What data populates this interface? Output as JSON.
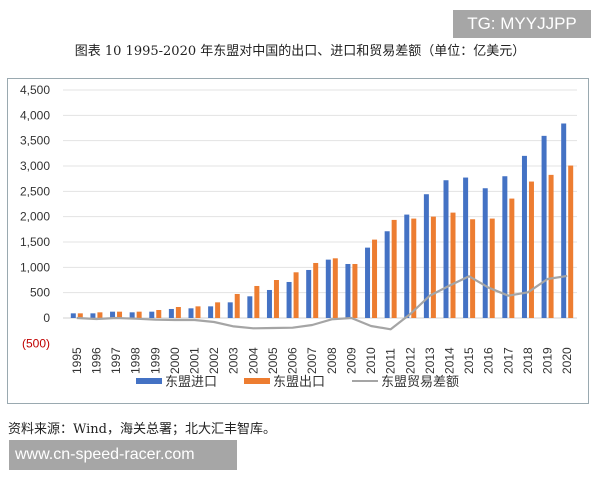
{
  "watermark_top": "TG: MYYJJPP",
  "watermark_bottom": "www.cn-speed-racer.com",
  "source": "资料来源：Wind，海关总署；北大汇丰智库。",
  "chart_data": {
    "type": "bar",
    "title": "图表 10 1995-2020 年东盟对中国的出口、进口和贸易差额（单位：亿美元）",
    "categories": [
      "1995",
      "1996",
      "1997",
      "1998",
      "1999",
      "2000",
      "2001",
      "2002",
      "2003",
      "2004",
      "2005",
      "2006",
      "2007",
      "2008",
      "2009",
      "2010",
      "2011",
      "2012",
      "2013",
      "2014",
      "2015",
      "2016",
      "2017",
      "2018",
      "2019",
      "2020"
    ],
    "ylim": [
      -500,
      4500
    ],
    "yticks": [
      -500,
      0,
      500,
      1000,
      1500,
      2000,
      2500,
      3000,
      3500,
      4000,
      4500
    ],
    "ytick_labels": [
      "(500)",
      "0",
      "500",
      "1,000",
      "1,500",
      "2,000",
      "2,500",
      "3,000",
      "3,500",
      "4,000",
      "4,500"
    ],
    "grid": true,
    "legend_position": "bottom",
    "series": [
      {
        "name": "东盟进口",
        "type": "bar",
        "color": "#4472c4",
        "values": [
          92,
          92,
          125,
          112,
          125,
          178,
          191,
          230,
          309,
          428,
          553,
          711,
          948,
          1152,
          1066,
          1389,
          1712,
          2041,
          2443,
          2719,
          2772,
          2561,
          2798,
          3200,
          3595,
          3839
        ]
      },
      {
        "name": "东盟出口",
        "type": "bar",
        "color": "#ed7d31",
        "values": [
          92,
          112,
          125,
          125,
          158,
          217,
          230,
          309,
          474,
          632,
          750,
          902,
          1086,
          1178,
          1066,
          1547,
          1936,
          1962,
          2001,
          2080,
          1949,
          1962,
          2357,
          2693,
          2825,
          3009
        ]
      },
      {
        "name": "东盟贸易差额",
        "type": "line",
        "color": "#a5a5a5",
        "values": [
          0,
          -20,
          0,
          -13,
          -33,
          -39,
          -39,
          -79,
          -165,
          -204,
          -197,
          -191,
          -138,
          -26,
          0,
          -158,
          -224,
          79,
          442,
          639,
          823,
          599,
          441,
          507,
          770,
          830
        ]
      }
    ]
  }
}
